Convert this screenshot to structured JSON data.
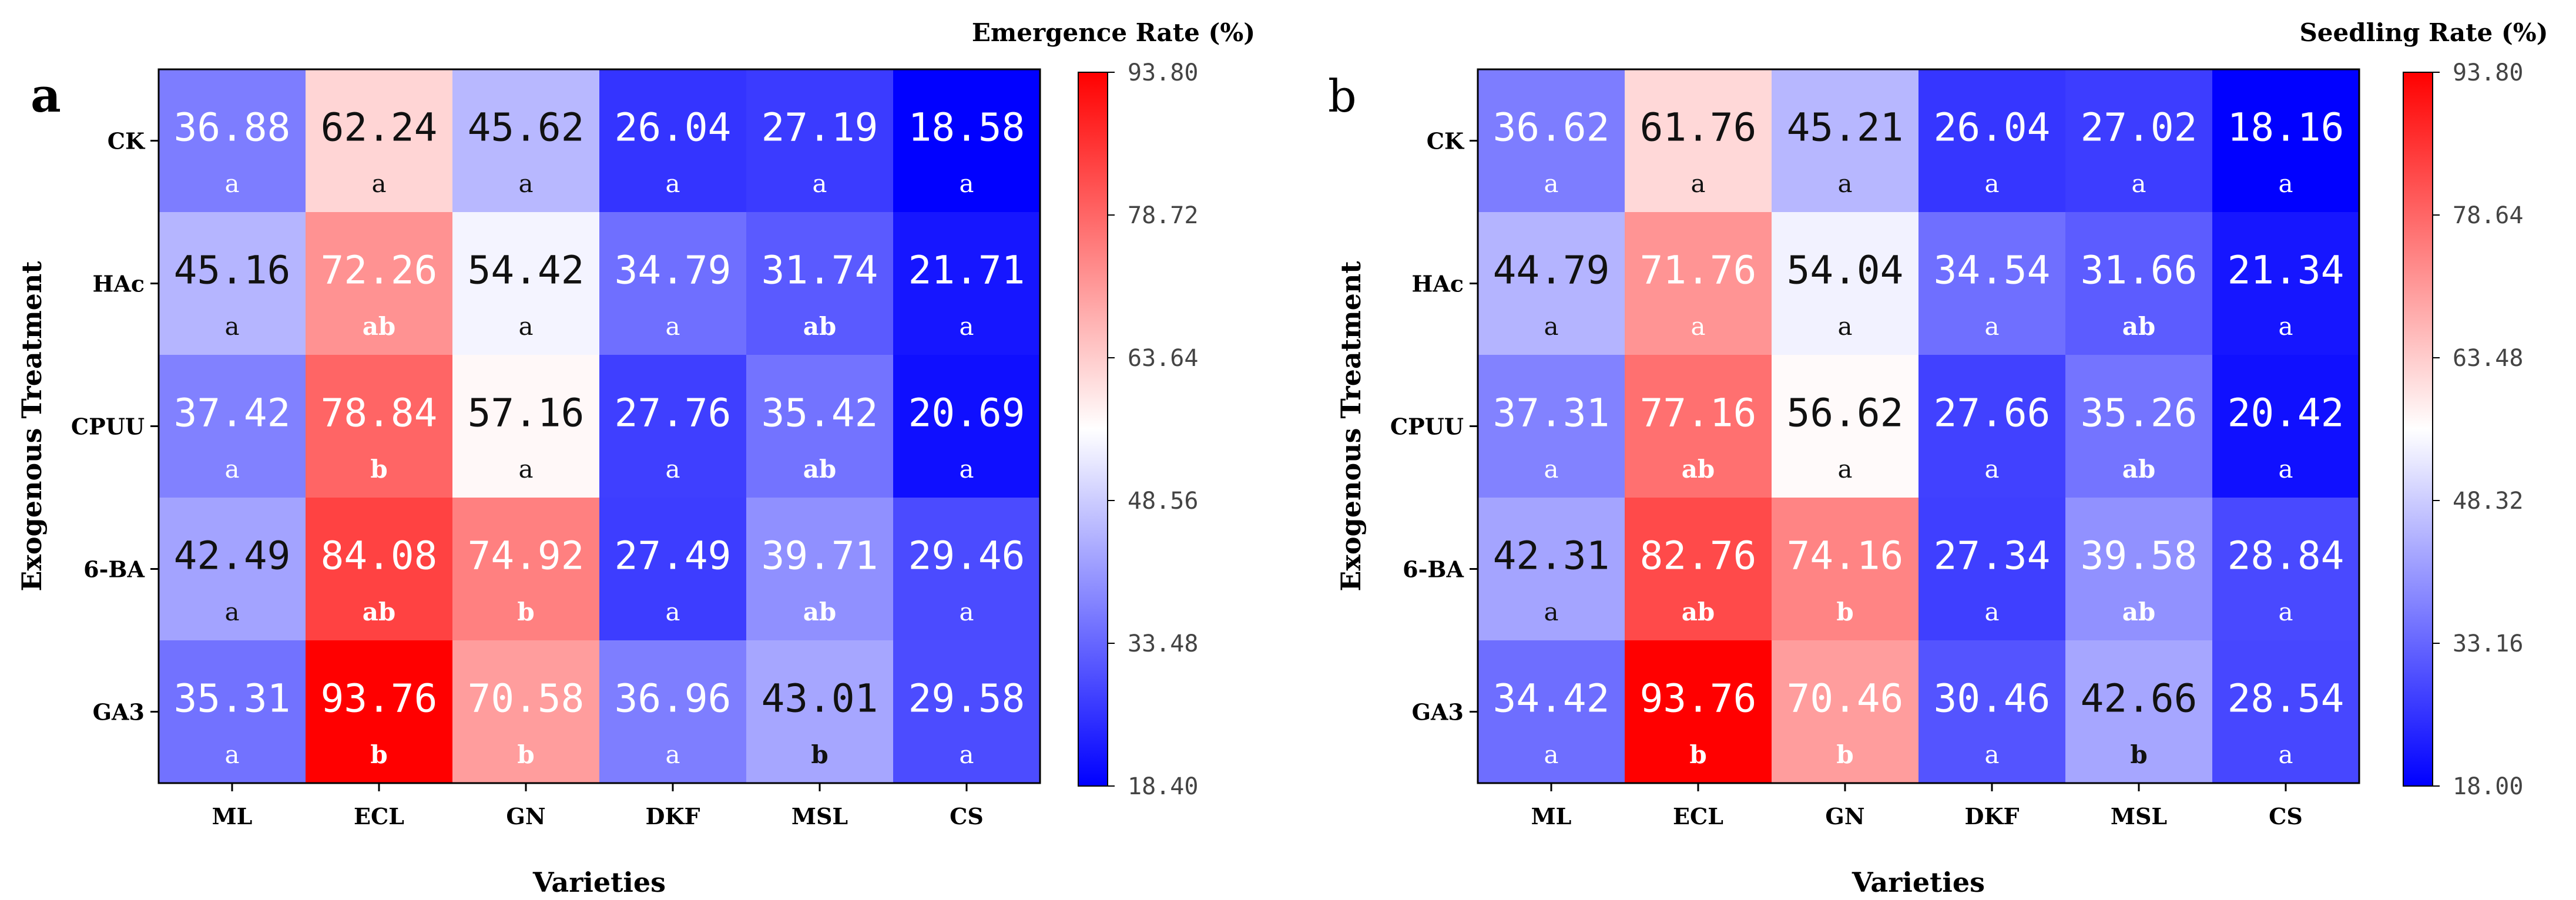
{
  "chart_data": [
    {
      "type": "heatmap",
      "panel_label": "a",
      "xlabel": "Varieties",
      "ylabel": "Exogenous Treatment",
      "colorbar_title": "Emergence Rate (%)",
      "colorbar_ticks": [
        "93.80",
        "78.72",
        "63.64",
        "48.56",
        "33.48",
        "18.40"
      ],
      "vmin": 18.4,
      "vmax": 93.8,
      "x_categories": [
        "ML",
        "ECL",
        "GN",
        "DKF",
        "MSL",
        "CS"
      ],
      "y_categories": [
        "CK",
        "HAc",
        "CPUU",
        "6-BA",
        "GA3"
      ],
      "values": [
        [
          36.88,
          62.24,
          45.62,
          26.04,
          27.19,
          18.58
        ],
        [
          45.16,
          72.26,
          54.42,
          34.79,
          31.74,
          21.71
        ],
        [
          37.42,
          78.84,
          57.16,
          27.76,
          35.42,
          20.69
        ],
        [
          42.49,
          84.08,
          74.92,
          27.49,
          39.71,
          29.46
        ],
        [
          35.31,
          93.76,
          70.58,
          36.96,
          43.01,
          29.58
        ]
      ],
      "value_labels": [
        [
          "36.88",
          "62.24",
          "45.62",
          "26.04",
          "27.19",
          "18.58"
        ],
        [
          "45.16",
          "72.26",
          "54.42",
          "34.79",
          "31.74",
          "21.71"
        ],
        [
          "37.42",
          "78.84",
          "57.16",
          "27.76",
          "35.42",
          "20.69"
        ],
        [
          "42.49",
          "84.08",
          "74.92",
          "27.49",
          "39.71",
          "29.46"
        ],
        [
          "35.31",
          "93.76",
          "70.58",
          "36.96",
          "43.01",
          "29.58"
        ]
      ],
      "letters": [
        [
          "a",
          "a",
          "a",
          "a",
          "a",
          "a"
        ],
        [
          "a",
          "ab",
          "a",
          "a",
          "ab",
          "a"
        ],
        [
          "a",
          "b",
          "a",
          "a",
          "ab",
          "a"
        ],
        [
          "a",
          "ab",
          "b",
          "a",
          "ab",
          "a"
        ],
        [
          "a",
          "b",
          "b",
          "a",
          "b",
          "a"
        ]
      ]
    },
    {
      "type": "heatmap",
      "panel_label": "b",
      "xlabel": "Varieties",
      "ylabel": "Exogenous Treatment",
      "colorbar_title": "Seedling Rate (%)",
      "colorbar_ticks": [
        "93.80",
        "78.64",
        "63.48",
        "48.32",
        "33.16",
        "18.00"
      ],
      "vmin": 18.0,
      "vmax": 93.8,
      "x_categories": [
        "ML",
        "ECL",
        "GN",
        "DKF",
        "MSL",
        "CS"
      ],
      "y_categories": [
        "CK",
        "HAc",
        "CPUU",
        "6-BA",
        "GA3"
      ],
      "values": [
        [
          36.62,
          61.76,
          45.21,
          26.04,
          27.02,
          18.16
        ],
        [
          44.79,
          71.76,
          54.04,
          34.54,
          31.66,
          21.34
        ],
        [
          37.31,
          77.16,
          56.62,
          27.66,
          35.26,
          20.42
        ],
        [
          42.31,
          82.76,
          74.16,
          27.34,
          39.58,
          28.84
        ],
        [
          34.42,
          93.76,
          70.46,
          30.46,
          42.66,
          28.54
        ]
      ],
      "value_labels": [
        [
          "36.62",
          "61.76",
          "45.21",
          "26.04",
          "27.02",
          "18.16"
        ],
        [
          "44.79",
          "71.76",
          "54.04",
          "34.54",
          "31.66",
          "21.34"
        ],
        [
          "37.31",
          "77.16",
          "56.62",
          "27.66",
          "35.26",
          "20.42"
        ],
        [
          "42.31",
          "82.76",
          "74.16",
          "27.34",
          "39.58",
          "28.84"
        ],
        [
          "34.42",
          "93.76",
          "70.46",
          "30.46",
          "42.66",
          "28.54"
        ]
      ],
      "letters": [
        [
          "a",
          "a",
          "a",
          "a",
          "a",
          "a"
        ],
        [
          "a",
          "a",
          "a",
          "a",
          "ab",
          "a"
        ],
        [
          "a",
          "ab",
          "a",
          "a",
          "ab",
          "a"
        ],
        [
          "a",
          "ab",
          "b",
          "a",
          "ab",
          "a"
        ],
        [
          "a",
          "b",
          "b",
          "a",
          "b",
          "a"
        ]
      ]
    }
  ],
  "colors": {
    "low": "#0000ff",
    "mid": "#ffffff",
    "high": "#ff0000"
  }
}
